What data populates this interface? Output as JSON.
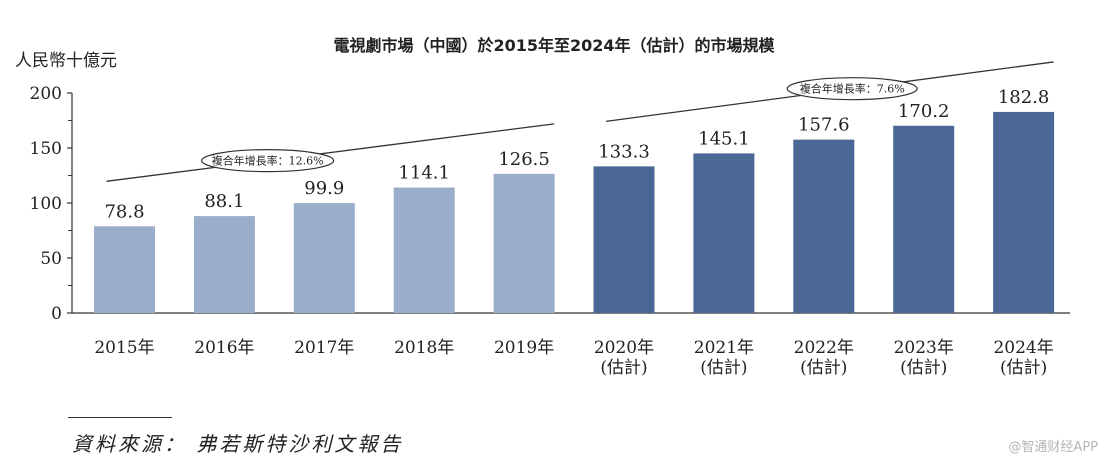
{
  "chart_data": {
    "type": "bar",
    "title": "電視劇市場（中國）於2015年至2024年（估計）的市場規模",
    "ylabel": "人民幣十億元",
    "xlabel": "",
    "ylim": [
      0,
      200
    ],
    "yticks": [
      0,
      50,
      100,
      150,
      200
    ],
    "categories": [
      [
        "2015年"
      ],
      [
        "2016年"
      ],
      [
        "2017年"
      ],
      [
        "2018年"
      ],
      [
        "2019年"
      ],
      [
        "2020年",
        "(估計)"
      ],
      [
        "2021年",
        "(估計)"
      ],
      [
        "2022年",
        "(估計)"
      ],
      [
        "2023年",
        "(估計)"
      ],
      [
        "2024年",
        "(估計)"
      ]
    ],
    "values": [
      78.8,
      88.1,
      99.9,
      114.1,
      126.5,
      133.3,
      145.1,
      157.6,
      170.2,
      182.8
    ],
    "value_labels": [
      "78.8",
      "88.1",
      "99.9",
      "114.1",
      "126.5",
      "133.3",
      "145.1",
      "157.6",
      "170.2",
      "182.8"
    ],
    "estimated": [
      false,
      false,
      false,
      false,
      false,
      true,
      true,
      true,
      true,
      true
    ],
    "colors": {
      "historical": "#9aaecb",
      "estimated": "#4a6795",
      "axis": "#333333",
      "text": "#222222"
    },
    "annotations": [
      {
        "label": "複合年增長率：12.6%",
        "from_index": 0,
        "to_index": 4
      },
      {
        "label": "複合年增長率：7.6%",
        "from_index": 5,
        "to_index": 9
      }
    ],
    "grid": false
  },
  "footer": {
    "source": "資料來源： 弗若斯特沙利文報告",
    "watermark": "@智通财经APP"
  }
}
